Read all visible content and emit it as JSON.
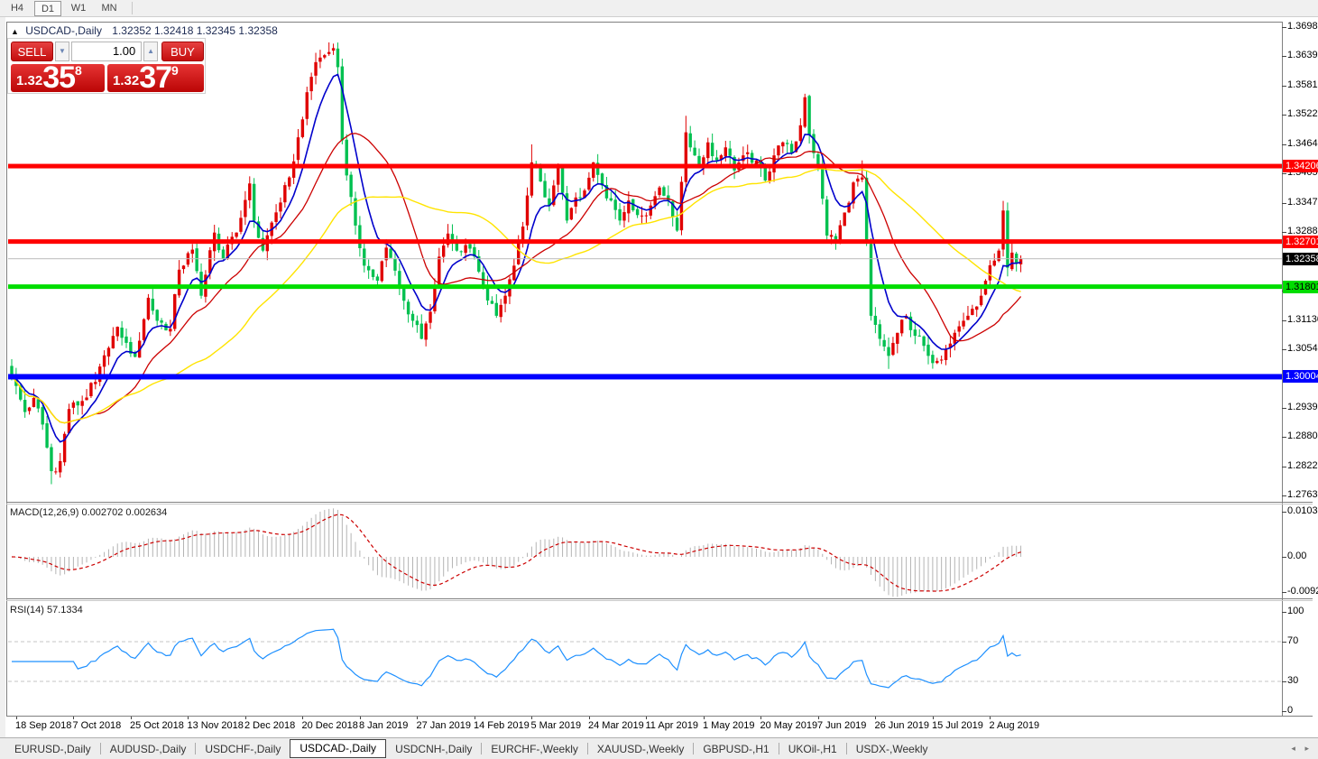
{
  "toolbar": {
    "timeframes": [
      {
        "label": "H4",
        "active": false
      },
      {
        "label": "D1",
        "active": true
      },
      {
        "label": "W1",
        "active": false
      },
      {
        "label": "MN",
        "active": false
      }
    ]
  },
  "trade_panel": {
    "expand_icon": "▲",
    "symbol": "USDCAD-,Daily",
    "ohlc": "1.32352 1.32418 1.32345 1.32358",
    "sell_label": "SELL",
    "buy_label": "BUY",
    "volume": "1.00",
    "spin_down_icon": "▼",
    "spin_up_icon": "▲",
    "sell_price": {
      "prefix": "1.32",
      "main": "35",
      "sup": "8"
    },
    "buy_price": {
      "prefix": "1.32",
      "main": "37",
      "sup": "9"
    }
  },
  "price_axis": {
    "labels": [
      "1.36980",
      "1.36395",
      "1.35810",
      "1.35225",
      "1.34640",
      "1.34055",
      "1.33470",
      "1.32885",
      "1.31715",
      "1.31130",
      "1.30545",
      "1.29390",
      "1.28805",
      "1.28220",
      "1.27635"
    ],
    "badges": [
      {
        "text": "1.34206",
        "bg": "#ff0000",
        "fg": "#ffffff"
      },
      {
        "text": "1.32701",
        "bg": "#ff0000",
        "fg": "#ffffff"
      },
      {
        "text": "1.32358",
        "bg": "#000000",
        "fg": "#ffffff"
      },
      {
        "text": "1.31801",
        "bg": "#00dd00",
        "fg": "#000000"
      },
      {
        "text": "1.30004",
        "bg": "#0000ff",
        "fg": "#ffffff"
      }
    ]
  },
  "macd_panel": {
    "label": "MACD(12,26,9) 0.002702 0.002634",
    "axis": [
      {
        "text": "0.010311",
        "value": 0.010311
      },
      {
        "text": "0.00",
        "value": 0
      },
      {
        "text": "-0.00920",
        "value": -0.0092
      }
    ]
  },
  "rsi_panel": {
    "label": "RSI(14) 57.1334",
    "axis": [
      {
        "text": "100",
        "value": 100
      },
      {
        "text": "70",
        "value": 70
      },
      {
        "text": "30",
        "value": 30
      },
      {
        "text": "0",
        "value": 0
      }
    ],
    "levels": [
      70,
      30
    ]
  },
  "date_axis": [
    "18 Sep 2018",
    "7 Oct 2018",
    "25 Oct 2018",
    "13 Nov 2018",
    "2 Dec 2018",
    "20 Dec 2018",
    "8 Jan 2019",
    "27 Jan 2019",
    "14 Feb 2019",
    "5 Mar 2019",
    "24 Mar 2019",
    "11 Apr 2019",
    "1 May 2019",
    "20 May 2019",
    "7 Jun 2019",
    "26 Jun 2019",
    "15 Jul 2019",
    "2 Aug 2019"
  ],
  "tabs": {
    "items": [
      {
        "label": "EURUSD-,Daily",
        "active": false
      },
      {
        "label": "AUDUSD-,Daily",
        "active": false
      },
      {
        "label": "USDCHF-,Daily",
        "active": false
      },
      {
        "label": "USDCAD-,Daily",
        "active": true
      },
      {
        "label": "USDCNH-,Daily",
        "active": false
      },
      {
        "label": "EURCHF-,Weekly",
        "active": false
      },
      {
        "label": "XAUUSD-,Weekly",
        "active": false
      },
      {
        "label": "GBPUSD-,H1",
        "active": false
      },
      {
        "label": "UKOil-,H1",
        "active": false
      },
      {
        "label": "USDX-,Weekly",
        "active": false
      }
    ],
    "scroll_left": "◂",
    "scroll_right": "▸"
  },
  "chart_data": {
    "type": "candlestick",
    "symbol": "USDCAD-",
    "timeframe": "Daily",
    "y_top": 1.3698,
    "y_bottom": 1.27635,
    "bars": 230,
    "bars_per_tick": 13,
    "noise": 0.0022,
    "close_waypoints": [
      [
        0,
        1.3
      ],
      [
        3,
        1.293
      ],
      [
        5,
        1.2958
      ],
      [
        7,
        1.2905
      ],
      [
        9,
        1.2812
      ],
      [
        11,
        1.2832
      ],
      [
        13,
        1.2936
      ],
      [
        16,
        1.2952
      ],
      [
        19,
        1.299
      ],
      [
        22,
        1.3058
      ],
      [
        24,
        1.31
      ],
      [
        26,
        1.3068
      ],
      [
        28,
        1.304
      ],
      [
        31,
        1.3158
      ],
      [
        33,
        1.3112
      ],
      [
        36,
        1.3096
      ],
      [
        38,
        1.3214
      ],
      [
        41,
        1.3254
      ],
      [
        43,
        1.3162
      ],
      [
        46,
        1.3288
      ],
      [
        48,
        1.3236
      ],
      [
        51,
        1.3288
      ],
      [
        54,
        1.3386
      ],
      [
        55,
        1.3312
      ],
      [
        57,
        1.3252
      ],
      [
        59,
        1.3308
      ],
      [
        61,
        1.3348
      ],
      [
        63,
        1.3398
      ],
      [
        65,
        1.3478
      ],
      [
        67,
        1.3568
      ],
      [
        69,
        1.3628
      ],
      [
        71,
        1.3642
      ],
      [
        73,
        1.3656
      ],
      [
        74,
        1.3618
      ],
      [
        75,
        1.3472
      ],
      [
        76,
        1.3402
      ],
      [
        78,
        1.3302
      ],
      [
        80,
        1.3222
      ],
      [
        83,
        1.3192
      ],
      [
        85,
        1.3258
      ],
      [
        87,
        1.3212
      ],
      [
        89,
        1.3152
      ],
      [
        91,
        1.3112
      ],
      [
        93,
        1.3076
      ],
      [
        95,
        1.313
      ],
      [
        97,
        1.324
      ],
      [
        99,
        1.3286
      ],
      [
        101,
        1.3252
      ],
      [
        104,
        1.3256
      ],
      [
        107,
        1.3182
      ],
      [
        110,
        1.3122
      ],
      [
        112,
        1.3162
      ],
      [
        114,
        1.3222
      ],
      [
        116,
        1.33
      ],
      [
        117,
        1.3362
      ],
      [
        118,
        1.3428
      ],
      [
        120,
        1.339
      ],
      [
        122,
        1.3342
      ],
      [
        124,
        1.3418
      ],
      [
        126,
        1.3312
      ],
      [
        128,
        1.3358
      ],
      [
        130,
        1.3372
      ],
      [
        132,
        1.3428
      ],
      [
        134,
        1.3382
      ],
      [
        136,
        1.3352
      ],
      [
        138,
        1.3312
      ],
      [
        140,
        1.3352
      ],
      [
        143,
        1.3322
      ],
      [
        145,
        1.3342
      ],
      [
        147,
        1.3378
      ],
      [
        149,
        1.3352
      ],
      [
        151,
        1.3292
      ],
      [
        153,
        1.3488
      ],
      [
        155,
        1.3442
      ],
      [
        156,
        1.3422
      ],
      [
        158,
        1.3468
      ],
      [
        160,
        1.3432
      ],
      [
        162,
        1.3458
      ],
      [
        164,
        1.3412
      ],
      [
        166,
        1.3442
      ],
      [
        169,
        1.3432
      ],
      [
        171,
        1.3392
      ],
      [
        173,
        1.3442
      ],
      [
        175,
        1.3468
      ],
      [
        177,
        1.3446
      ],
      [
        179,
        1.3502
      ],
      [
        180,
        1.3558
      ],
      [
        181,
        1.3482
      ],
      [
        183,
        1.3422
      ],
      [
        185,
        1.3282
      ],
      [
        187,
        1.3272
      ],
      [
        189,
        1.3328
      ],
      [
        191,
        1.3388
      ],
      [
        193,
        1.3398
      ],
      [
        195,
        1.3122
      ],
      [
        197,
        1.3076
      ],
      [
        199,
        1.3042
      ],
      [
        201,
        1.3088
      ],
      [
        203,
        1.3122
      ],
      [
        205,
        1.3082
      ],
      [
        207,
        1.3062
      ],
      [
        208,
        1.3042
      ],
      [
        210,
        1.3032
      ],
      [
        212,
        1.3056
      ],
      [
        214,
        1.3088
      ],
      [
        216,
        1.3112
      ],
      [
        218,
        1.3136
      ],
      [
        220,
        1.3162
      ],
      [
        221,
        1.3192
      ],
      [
        223,
        1.3232
      ],
      [
        224,
        1.3252
      ],
      [
        225,
        1.3332
      ],
      [
        226,
        1.3218
      ],
      [
        227,
        1.3248
      ],
      [
        228,
        1.3226
      ],
      [
        229,
        1.32358
      ]
    ],
    "wick_overrides": [
      {
        "i": 9,
        "low": 1.2786
      },
      {
        "i": 73,
        "high": 1.3665
      },
      {
        "i": 118,
        "high": 1.3464
      },
      {
        "i": 153,
        "high": 1.3521
      },
      {
        "i": 180,
        "high": 1.3565
      },
      {
        "i": 193,
        "high": 1.3432
      },
      {
        "i": 199,
        "low": 1.3016
      },
      {
        "i": 225,
        "high": 1.3345
      }
    ],
    "candle_colors": {
      "bull": "#e00000",
      "bear": "#00c050"
    },
    "moving_averages": [
      {
        "type": "ema",
        "period": 8,
        "color": "#0000cc",
        "width": 1.6
      },
      {
        "type": "sma",
        "period": 20,
        "color": "#cc0000",
        "width": 1.3
      },
      {
        "type": "sma",
        "period": 45,
        "color": "#ffe400",
        "width": 1.4
      }
    ],
    "hlines": [
      {
        "price": 1.34206,
        "color": "#ff0000",
        "thickness": 5
      },
      {
        "price": 1.32701,
        "color": "#ff0000",
        "thickness": 5
      },
      {
        "price": 1.31801,
        "color": "#00dd00",
        "thickness": 5
      },
      {
        "price": 1.30004,
        "color": "#0000ff",
        "thickness": 6
      },
      {
        "price": 1.32358,
        "color": "#bcbcbc",
        "thickness": 1
      }
    ],
    "macd": {
      "fast": 12,
      "slow": 26,
      "signal": 9,
      "hist_color": "#b4b4b4",
      "signal_color": "#cc0000",
      "last_main": 0.002702,
      "last_signal": 0.002634
    },
    "rsi": {
      "period": 14,
      "color": "#1e90ff",
      "last": 57.1334,
      "level_color": "#c4c4c4"
    }
  }
}
